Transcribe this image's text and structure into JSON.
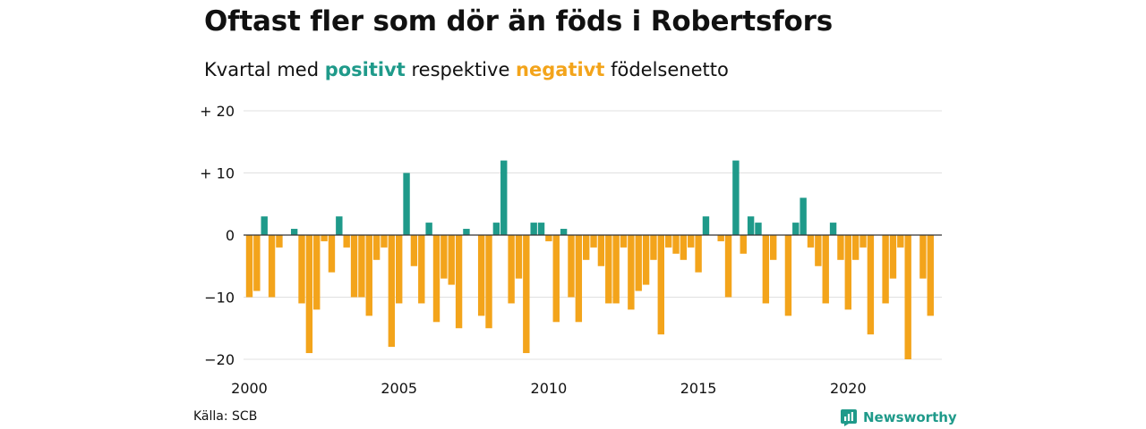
{
  "header": {
    "title": "Oftast fler som dör än föds i Robertsfors",
    "subtitle_before": "Kvartal med ",
    "subtitle_pos": "positivt",
    "subtitle_mid": " respektive ",
    "subtitle_neg": "negativt",
    "subtitle_after": " födelsenetto"
  },
  "footer": {
    "source": "Källa: SCB",
    "brand": "Newsworthy",
    "brand_icon": "bar-chart-logo-icon"
  },
  "colors": {
    "positive": "#1f9a8a",
    "negative": "#f3a41b",
    "grid": "#e0e0e0",
    "zero": "#333333",
    "text": "#111111"
  },
  "chart_data": {
    "type": "bar",
    "title": "Oftast fler som dör än föds i Robertsfors",
    "subtitle": "Kvartal med positivt respektive negativt födelsenetto",
    "x_start": "2000 Q1",
    "x_tick_labels": [
      "2000",
      "2005",
      "2010",
      "2015",
      "2020"
    ],
    "y_tick_values": [
      20,
      10,
      0,
      -10,
      -20
    ],
    "y_tick_labels": [
      "+ 20",
      "+ 10",
      "0",
      "−10",
      "−20"
    ],
    "ylim": [
      -20,
      20
    ],
    "grid": true,
    "values": [
      -10,
      -9,
      3,
      -10,
      -2,
      0,
      1,
      -11,
      -19,
      -12,
      -1,
      -6,
      3,
      -2,
      -10,
      -10,
      -13,
      -4,
      -2,
      -18,
      -11,
      10,
      -5,
      -11,
      2,
      -14,
      -7,
      -8,
      -15,
      1,
      0,
      -13,
      -15,
      2,
      12,
      -11,
      -7,
      -19,
      2,
      2,
      -1,
      -14,
      1,
      -10,
      -14,
      -4,
      -2,
      -5,
      -11,
      -11,
      -2,
      -12,
      -9,
      -8,
      -4,
      -16,
      -2,
      -3,
      -4,
      -2,
      -6,
      3,
      0,
      -1,
      -10,
      12,
      -3,
      3,
      2,
      -11,
      -4,
      0,
      -13,
      2,
      6,
      -2,
      -5,
      -11,
      2,
      -4,
      -12,
      -4,
      -2,
      -16,
      0,
      -11,
      -7,
      -2,
      -20,
      0,
      -7,
      -13
    ]
  }
}
